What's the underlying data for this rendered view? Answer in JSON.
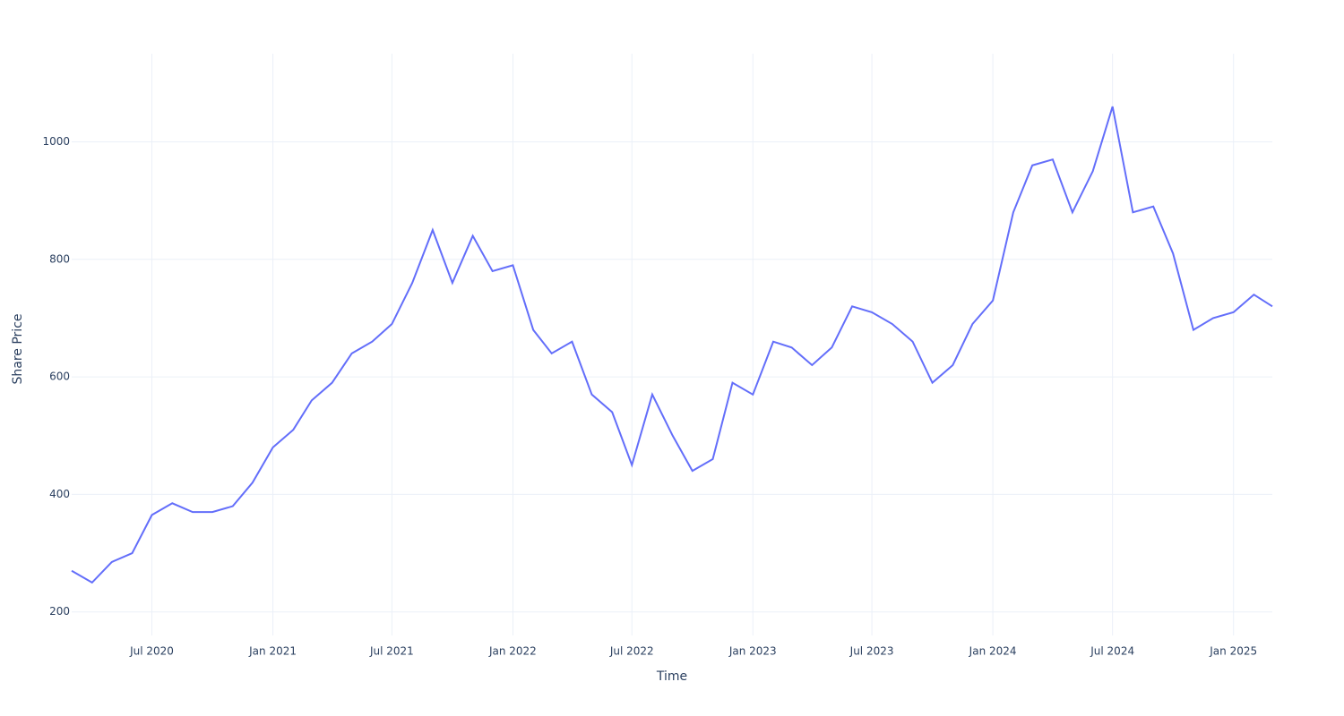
{
  "chart_data": {
    "type": "line",
    "x_label": "Time",
    "y_label": "Share Price",
    "color": "#636efa",
    "grid": true,
    "x": [
      "2020-03",
      "2020-04",
      "2020-05",
      "2020-06",
      "2020-07",
      "2020-08",
      "2020-09",
      "2020-10",
      "2020-11",
      "2020-12",
      "2021-01",
      "2021-02",
      "2021-03",
      "2021-04",
      "2021-05",
      "2021-06",
      "2021-07",
      "2021-08",
      "2021-09",
      "2021-10",
      "2021-11",
      "2021-12",
      "2022-01",
      "2022-02",
      "2022-03",
      "2022-04",
      "2022-05",
      "2022-06",
      "2022-07",
      "2022-08",
      "2022-09",
      "2022-10",
      "2022-11",
      "2022-12",
      "2023-01",
      "2023-02",
      "2023-03",
      "2023-04",
      "2023-05",
      "2023-06",
      "2023-07",
      "2023-08",
      "2023-09",
      "2023-10",
      "2023-11",
      "2023-12",
      "2024-01",
      "2024-02",
      "2024-03",
      "2024-04",
      "2024-05",
      "2024-06",
      "2024-07",
      "2024-08",
      "2024-09",
      "2024-10",
      "2024-11",
      "2024-12",
      "2025-01",
      "2025-02",
      "2025-03"
    ],
    "values": [
      270,
      250,
      285,
      300,
      365,
      385,
      370,
      370,
      380,
      420,
      480,
      510,
      560,
      590,
      640,
      660,
      690,
      760,
      850,
      760,
      840,
      780,
      790,
      680,
      640,
      660,
      570,
      540,
      450,
      570,
      500,
      440,
      460,
      590,
      570,
      660,
      650,
      620,
      650,
      720,
      710,
      690,
      660,
      590,
      620,
      690,
      730,
      880,
      960,
      970,
      880,
      950,
      1060,
      880,
      890,
      810,
      680,
      700,
      710,
      740,
      720
    ],
    "xlim": [
      "2020-03",
      "2025-03"
    ],
    "xticks": [
      {
        "value": "2020-07",
        "label": "Jul 2020"
      },
      {
        "value": "2021-01",
        "label": "Jan 2021"
      },
      {
        "value": "2021-07",
        "label": "Jul 2021"
      },
      {
        "value": "2022-01",
        "label": "Jan 2022"
      },
      {
        "value": "2022-07",
        "label": "Jul 2022"
      },
      {
        "value": "2023-01",
        "label": "Jan 2023"
      },
      {
        "value": "2023-07",
        "label": "Jul 2023"
      },
      {
        "value": "2024-01",
        "label": "Jan 2024"
      },
      {
        "value": "2024-07",
        "label": "Jul 2024"
      },
      {
        "value": "2025-01",
        "label": "Jan 2025"
      }
    ],
    "ylim": [
      160,
      1150
    ],
    "yticks": [
      200,
      400,
      600,
      800,
      1000
    ]
  }
}
